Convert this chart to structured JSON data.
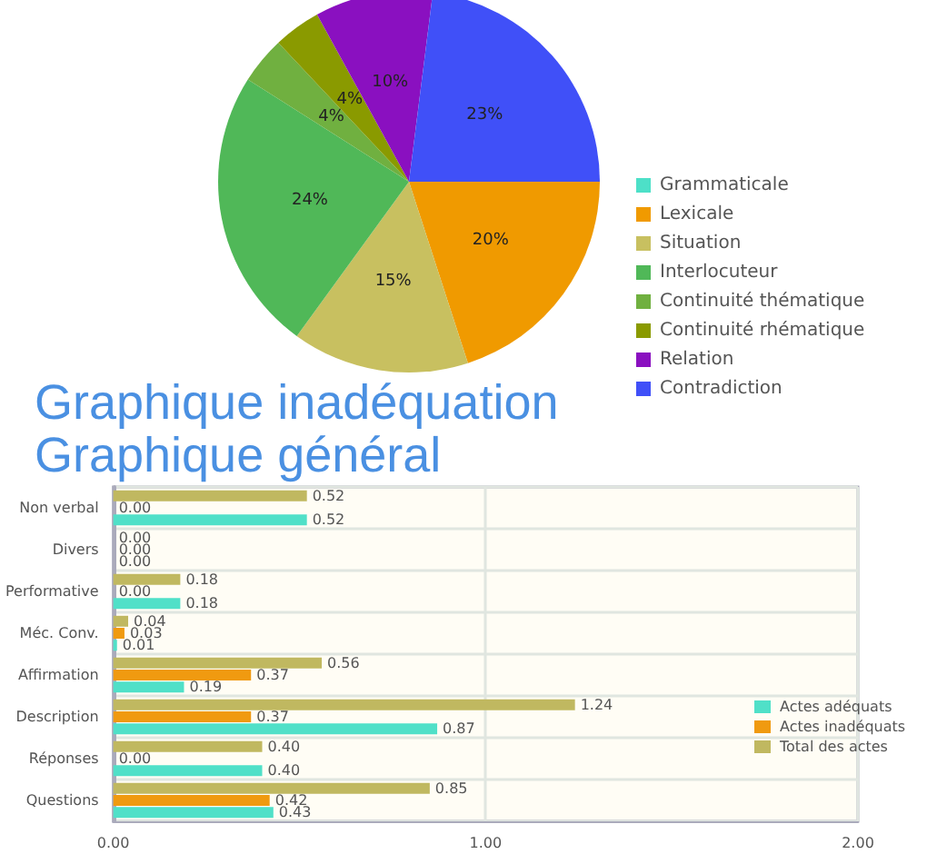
{
  "chart_data": [
    {
      "type": "pie",
      "title": "Graphique inadéquation",
      "categories": [
        "Grammaticale",
        "Lexicale",
        "Situation",
        "Interlocuteur",
        "Continuité thématique",
        "Continuité rhématique",
        "Relation",
        "Contradiction"
      ],
      "values": [
        0,
        20,
        15,
        24,
        4,
        4,
        10,
        23
      ],
      "colors": [
        "#4de0c8",
        "#f09a00",
        "#c8c060",
        "#50b858",
        "#70b040",
        "#8a9a00",
        "#8a10c0",
        "#4050f8"
      ],
      "value_labels": [
        null,
        "20%",
        "15%",
        "24%",
        "4%",
        "4%",
        "10%",
        "23%"
      ],
      "legend": "right"
    },
    {
      "type": "bar",
      "orientation": "horizontal",
      "title": "Graphique général",
      "categories": [
        "Non verbal",
        "Divers",
        "Performative",
        "Méc. Conv.",
        "Affirmation",
        "Description",
        "Réponses",
        "Questions"
      ],
      "series": [
        {
          "name": "Actes adéquats",
          "color": "#50e0c8",
          "values": [
            0.52,
            0,
            0.18,
            0.01,
            0.19,
            0.87,
            0.4,
            0.43
          ],
          "value_labels": [
            "0.52",
            "0.00",
            "0.18",
            "0.01",
            "0.19",
            "0.87",
            "0.40",
            "0.43"
          ]
        },
        {
          "name": "Actes inadéquats",
          "color": "#f09a10",
          "values": [
            0,
            0,
            0,
            0.03,
            0.37,
            0.37,
            0,
            0.42
          ],
          "value_labels": [
            "0.00",
            "0.00",
            "0.00",
            "0.03",
            "0.37",
            "0.37",
            "0.00",
            "0.42"
          ]
        },
        {
          "name": "Total des actes",
          "color": "#c0b860",
          "values": [
            0.52,
            0,
            0.18,
            0.04,
            0.56,
            1.24,
            0.4,
            0.85
          ],
          "value_labels": [
            "0.52",
            "0.00",
            "0.18",
            "0.04",
            "0.56",
            "1.24",
            "0.40",
            "0.85"
          ]
        }
      ],
      "xlim": [
        0,
        2
      ],
      "xticks": [
        {
          "value": 0,
          "label": "0.00"
        },
        {
          "value": 1,
          "label": "1.00"
        },
        {
          "value": 2,
          "label": "2.00"
        }
      ],
      "grid": true,
      "legend": "bottom right"
    }
  ]
}
